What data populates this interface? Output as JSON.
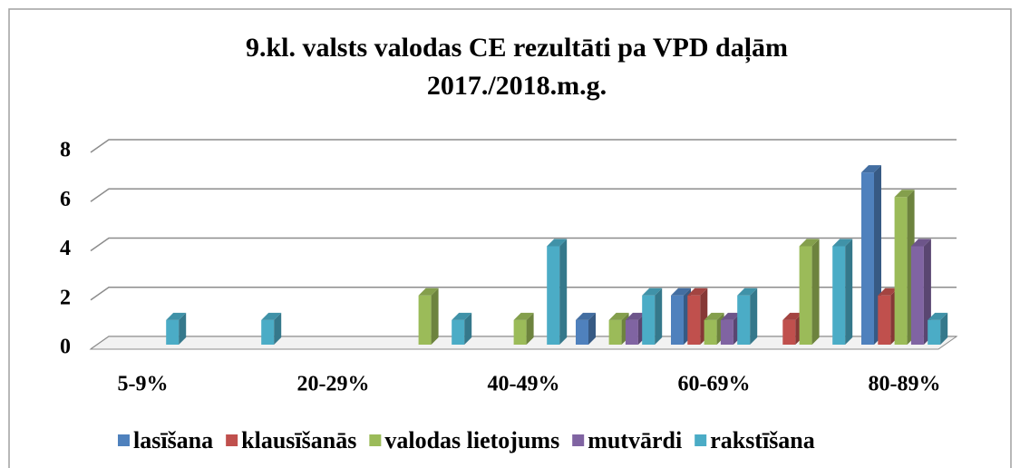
{
  "chart_data": {
    "type": "bar3d",
    "title": "9.kl. valsts valodas CE rezultāti pa VPD daļām",
    "subtitle": "2017./2018.m.g.",
    "categories": [
      "5-9%",
      null,
      "20-29%",
      null,
      "40-49%",
      null,
      "60-69%",
      null,
      "80-89%"
    ],
    "series": [
      {
        "name": "lasīšana",
        "color": "#4f81bd",
        "values": [
          0,
          0,
          0,
          0,
          0,
          1,
          2,
          0,
          7
        ]
      },
      {
        "name": "klausīšanās",
        "color": "#c0504d",
        "values": [
          0,
          0,
          0,
          0,
          0,
          0,
          2,
          1,
          2
        ]
      },
      {
        "name": "valodas lietojums",
        "color": "#9bbb59",
        "values": [
          0,
          0,
          0,
          2,
          1,
          1,
          1,
          4,
          6
        ]
      },
      {
        "name": "mutvārdi",
        "color": "#8064a2",
        "values": [
          0,
          0,
          0,
          0,
          0,
          1,
          1,
          0,
          4
        ]
      },
      {
        "name": "rakstīšana",
        "color": "#4bacc6",
        "values": [
          1,
          1,
          0,
          1,
          4,
          2,
          2,
          4,
          1
        ]
      }
    ],
    "ylim": [
      0,
      8
    ],
    "yticks": [
      0,
      2,
      4,
      6,
      8
    ],
    "grid": true,
    "legend": "bottom"
  }
}
